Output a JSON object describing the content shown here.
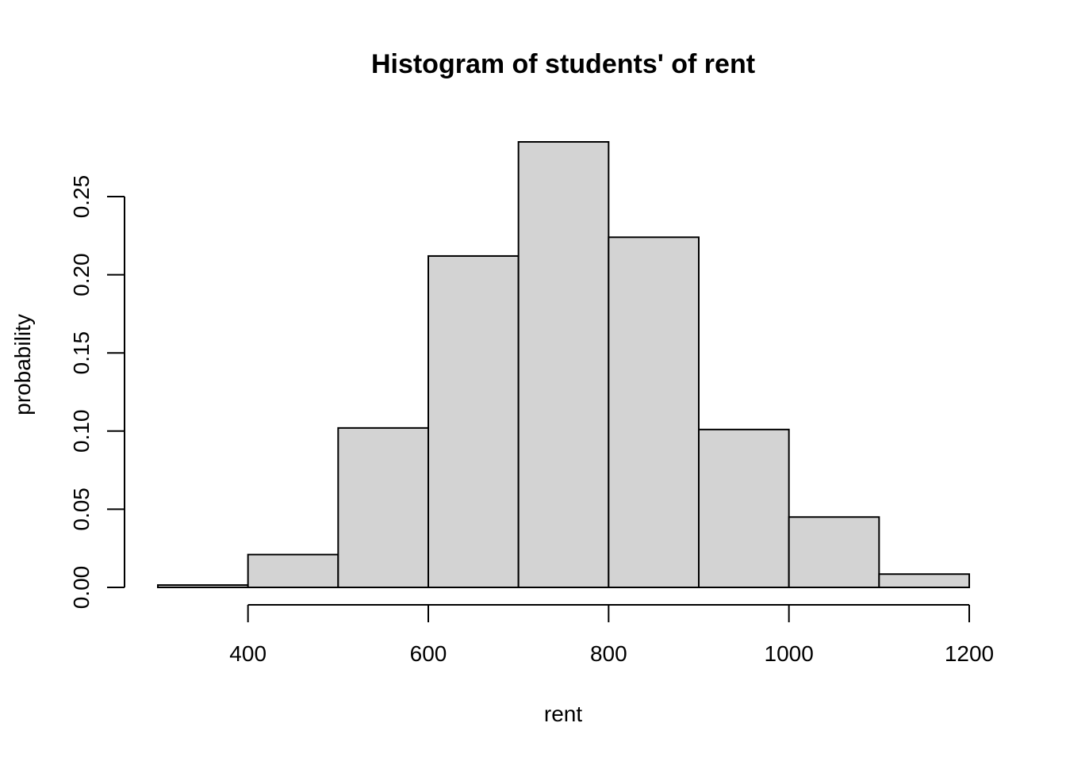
{
  "chart_data": {
    "type": "bar",
    "title": "Histogram of students' of rent",
    "xlabel": "rent",
    "ylabel": "probability",
    "bins": [
      {
        "start": 300,
        "end": 400,
        "value": 0.0015
      },
      {
        "start": 400,
        "end": 500,
        "value": 0.021
      },
      {
        "start": 500,
        "end": 600,
        "value": 0.102
      },
      {
        "start": 600,
        "end": 700,
        "value": 0.212
      },
      {
        "start": 700,
        "end": 800,
        "value": 0.285
      },
      {
        "start": 800,
        "end": 900,
        "value": 0.224
      },
      {
        "start": 900,
        "end": 1000,
        "value": 0.101
      },
      {
        "start": 1000,
        "end": 1100,
        "value": 0.045
      },
      {
        "start": 1100,
        "end": 1200,
        "value": 0.0085
      }
    ],
    "xlim": [
      300,
      1200
    ],
    "ylim": [
      0,
      0.285
    ],
    "xticks": [
      400,
      600,
      800,
      1000,
      1200
    ],
    "xtick_labels": [
      "400",
      "600",
      "800",
      "1000",
      "1200"
    ],
    "yticks": [
      0,
      0.05,
      0.1,
      0.15,
      0.2,
      0.25
    ],
    "ytick_labels": [
      "0.00",
      "0.05",
      "0.10",
      "0.15",
      "0.20",
      "0.25"
    ],
    "bar_color": "#d3d3d3",
    "edge_color": "#000000",
    "grid": false,
    "legend": "none"
  }
}
